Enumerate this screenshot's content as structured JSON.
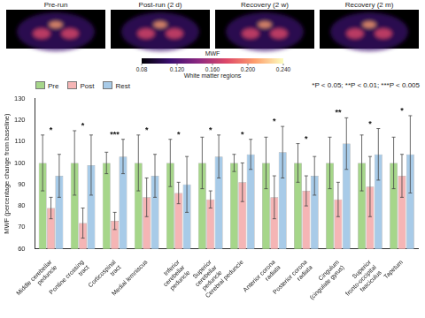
{
  "panels": {
    "labels": [
      "Pre-run",
      "Post-run (2 d)",
      "Recovery (2 w)",
      "Recovery (2 m)"
    ]
  },
  "colorbar": {
    "label": "MWF",
    "caption": "White matter regions",
    "range": [
      0.08,
      0.24
    ],
    "ticks": [
      0.08,
      {
        "value": 0.12,
        "label": "0.120"
      },
      {
        "value": 0.16,
        "label": "0.160"
      },
      {
        "value": 0.2,
        "label": "0.200"
      },
      {
        "value": 0.24,
        "label": "0.240"
      }
    ]
  },
  "chart_data": {
    "type": "bar",
    "y_label": "MWF (percentage change from baseline)",
    "note": "*P < 0.05; **P < 0.01; ***P < 0.005",
    "categories": [
      "Middle cerebellar peduncle",
      "Pontine crossing tract",
      "Corticospinal tract",
      "Medial lemniscus",
      "Inferior cerebellar peduncle",
      "Superior cerebellar peduncle",
      "Cerebral peduncle",
      "Anterior corona radiata",
      "Posterior corona radiata",
      "Cingulum (cingulate gyrus)",
      "Superior fronto-occipital fasciculus",
      "Tapetum"
    ],
    "series": [
      {
        "name": "Pre",
        "color": "#a6d68a",
        "values": [
          100,
          100,
          100,
          100,
          100,
          100,
          100,
          100,
          100,
          100,
          100,
          100
        ],
        "errors": [
          13,
          15,
          5,
          13,
          11,
          12,
          4,
          12,
          9,
          12,
          13,
          12
        ]
      },
      {
        "name": "Post",
        "color": "#f5b5b5",
        "values": [
          79,
          72,
          73,
          84,
          86,
          83,
          91,
          84,
          87,
          83,
          89,
          94
        ],
        "errors": [
          5,
          7,
          4,
          9,
          5,
          4,
          9,
          10,
          7,
          8,
          14,
          10
        ]
      },
      {
        "name": "Rest",
        "color": "#a8cbe8",
        "values": [
          94,
          99,
          103,
          94,
          90,
          103,
          104,
          105,
          94,
          109,
          104,
          104
        ],
        "errors": [
          10,
          14,
          8,
          10,
          13,
          10,
          7,
          12,
          9,
          12,
          12,
          18
        ]
      }
    ],
    "significance": [
      "*",
      "*",
      "***",
      "*",
      "*",
      "*",
      "*",
      "*",
      "*",
      "**",
      "*",
      "*"
    ],
    "ylim": [
      60,
      130
    ],
    "yticks": [
      60,
      70,
      80,
      90,
      100,
      110,
      120,
      130
    ],
    "grid": false,
    "legend": "upper left"
  }
}
